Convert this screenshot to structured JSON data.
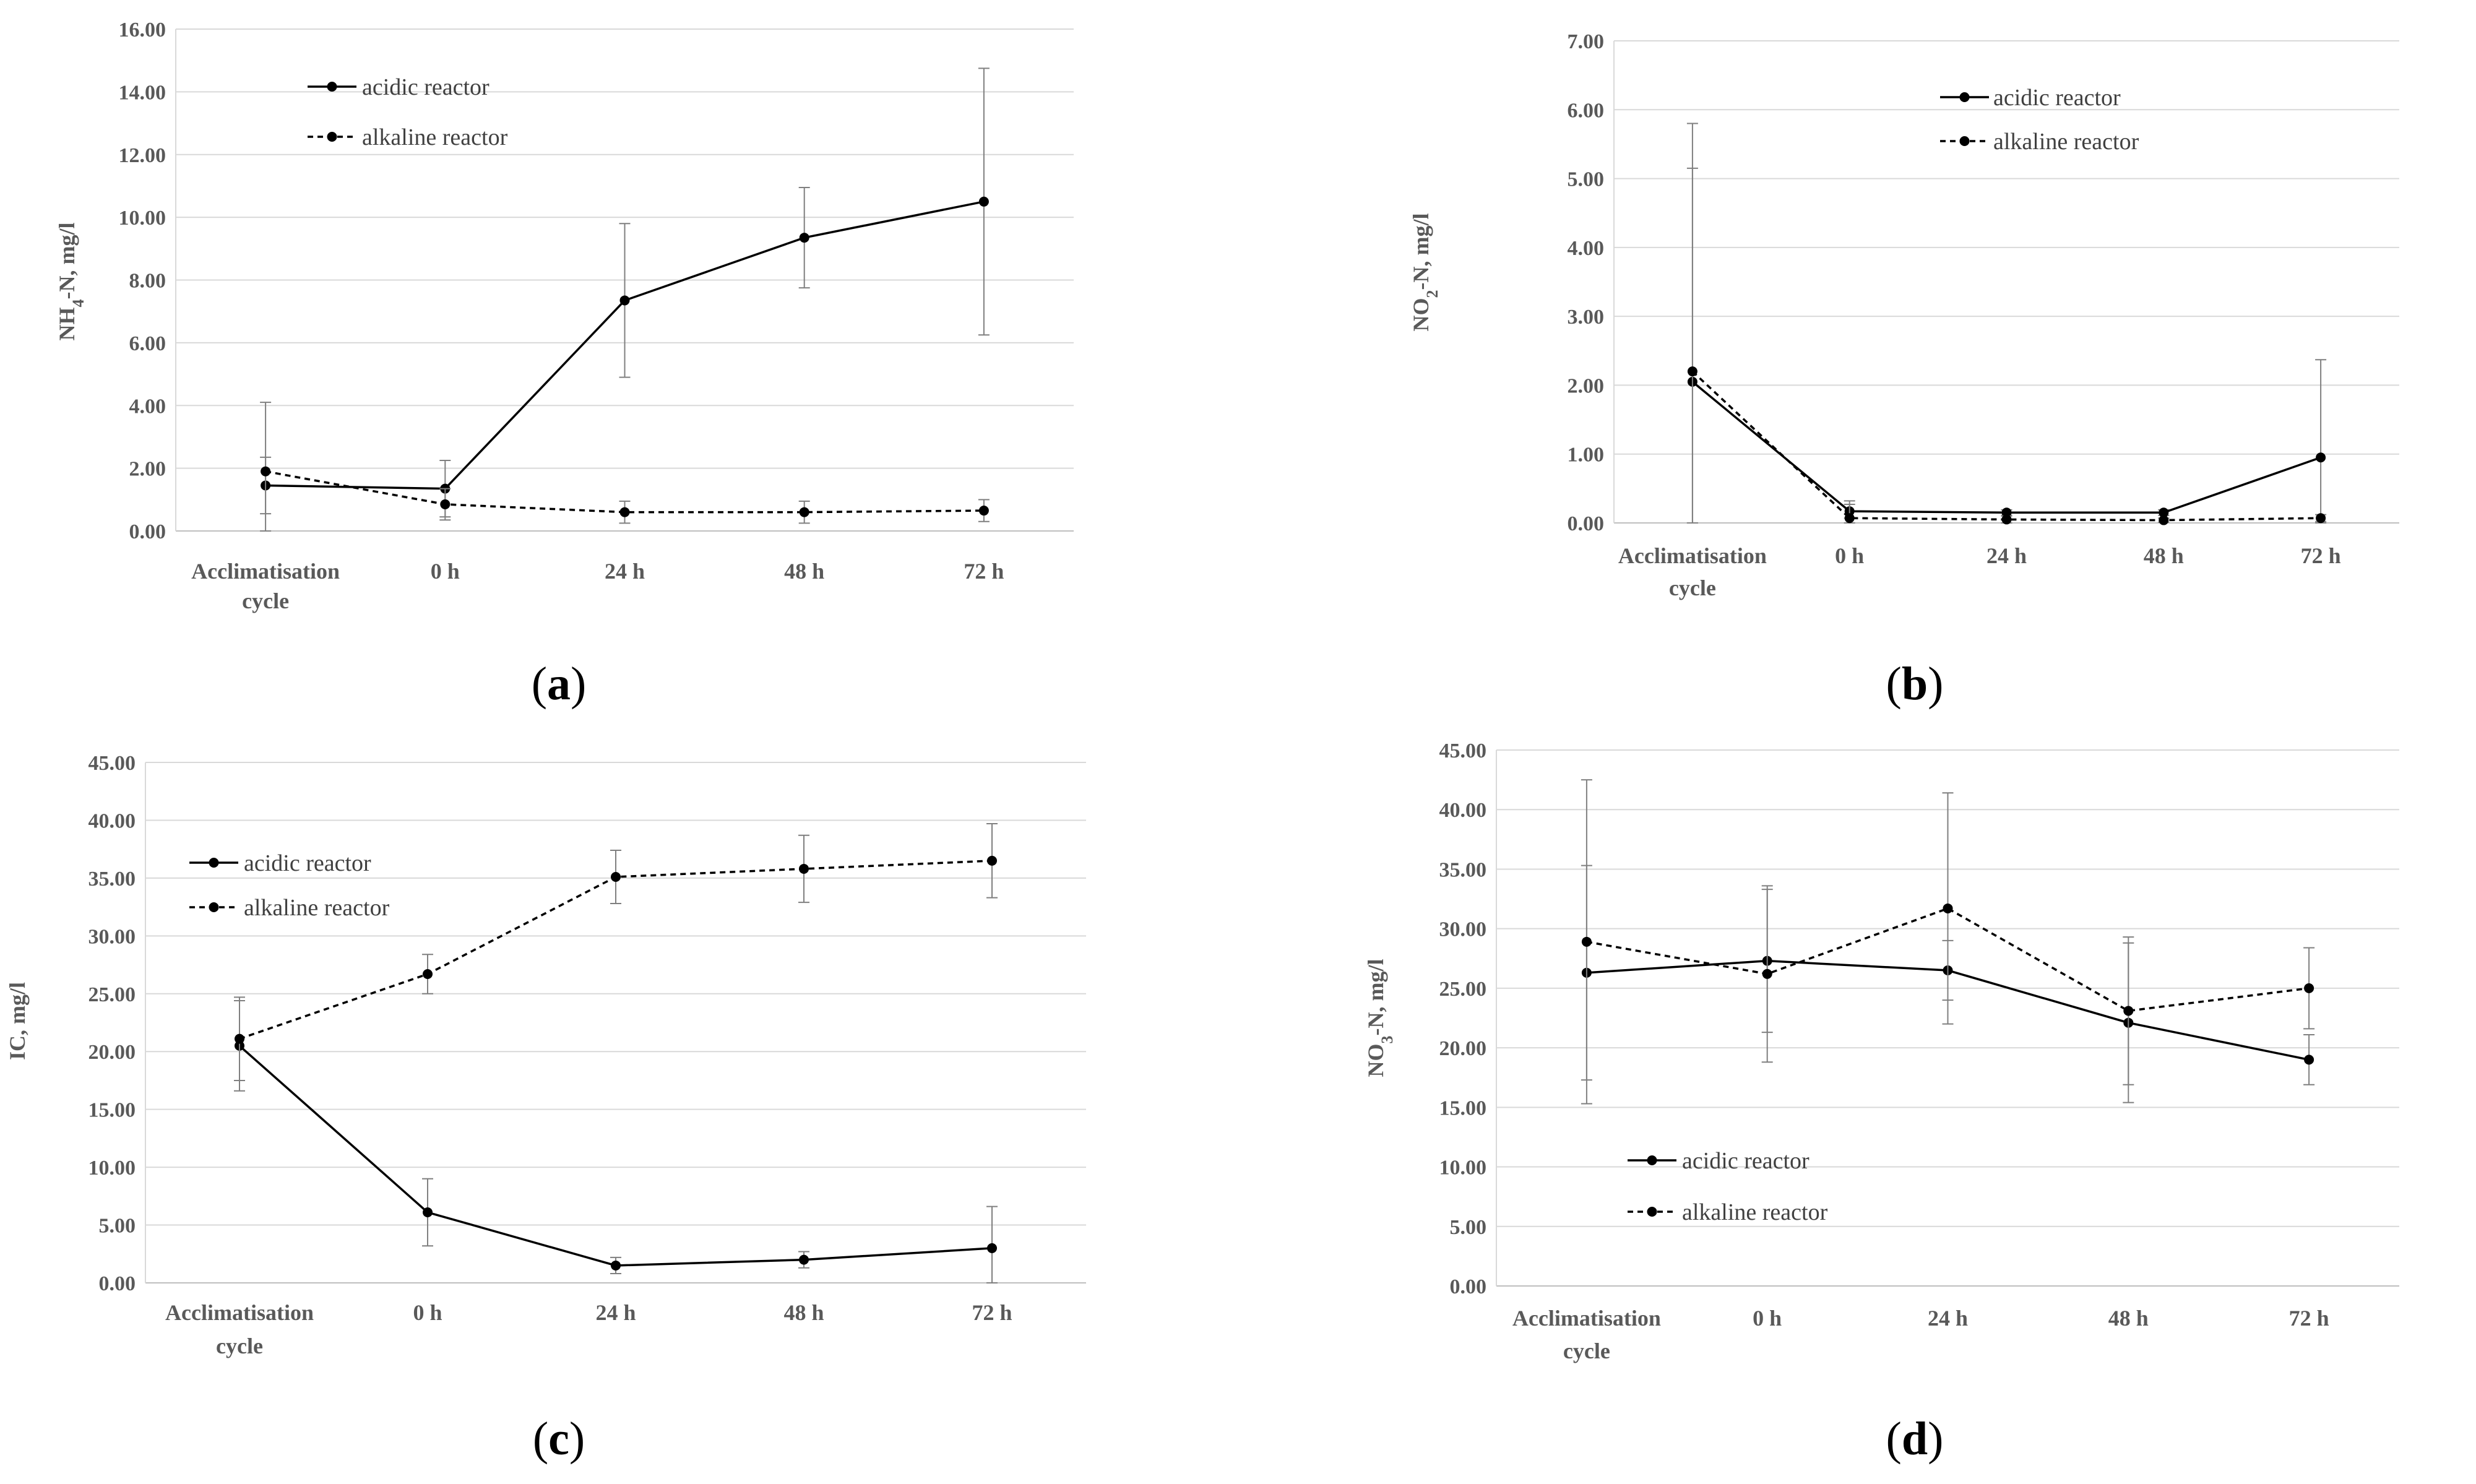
{
  "chart_data": [
    {
      "type": "line",
      "panel_label": "a",
      "ylabel_main": "NH",
      "ylabel_sub": "4",
      "ylabel_rest": "-N, mg/l",
      "ylim": [
        0,
        16
      ],
      "ytick_labels": [
        "0.00",
        "2.00",
        "4.00",
        "6.00",
        "8.00",
        "10.00",
        "12.00",
        "14.00",
        "16.00"
      ],
      "categories": [
        [
          "Acclimatisation",
          "cycle"
        ],
        [
          "0 h"
        ],
        [
          "24 h"
        ],
        [
          "48 h"
        ],
        [
          "72 h"
        ]
      ],
      "legend_position": "top-left",
      "series": [
        {
          "name": "acidic reactor",
          "style": "solid",
          "values": [
            1.45,
            1.35,
            7.35,
            9.35,
            10.5
          ],
          "errors": [
            0.9,
            0.9,
            2.45,
            1.6,
            4.25
          ]
        },
        {
          "name": "alkaline reactor",
          "style": "dashed",
          "values": [
            1.9,
            0.85,
            0.6,
            0.6,
            0.65
          ],
          "errors": [
            2.2,
            0.5,
            0.35,
            0.35,
            0.35
          ]
        }
      ]
    },
    {
      "type": "line",
      "panel_label": "b",
      "ylabel_main": "NO",
      "ylabel_sub": "2",
      "ylabel_rest": "-N, mg/l",
      "ylim": [
        0,
        7
      ],
      "ytick_labels": [
        "0.00",
        "1.00",
        "2.00",
        "3.00",
        "4.00",
        "5.00",
        "6.00",
        "7.00"
      ],
      "categories": [
        [
          "Acclimatisation",
          "cycle"
        ],
        [
          "0 h"
        ],
        [
          "24 h"
        ],
        [
          "48 h"
        ],
        [
          "72 h"
        ]
      ],
      "legend_position": "top-center",
      "series": [
        {
          "name": "acidic reactor",
          "style": "solid",
          "values": [
            2.05,
            0.17,
            0.15,
            0.15,
            0.95
          ],
          "errors": [
            3.1,
            0.1,
            0.04,
            0.04,
            1.42
          ]
        },
        {
          "name": "alkaline reactor",
          "style": "dashed",
          "values": [
            2.2,
            0.07,
            0.05,
            0.04,
            0.07
          ],
          "errors": [
            3.6,
            0.25,
            0.05,
            0.03,
            0.05
          ]
        }
      ]
    },
    {
      "type": "line",
      "panel_label": "c",
      "ylabel_main": "IC, mg/l",
      "ylabel_sub": "",
      "ylabel_rest": "",
      "ylim": [
        0,
        45
      ],
      "ytick_labels": [
        "0.00",
        "5.00",
        "10.00",
        "15.00",
        "20.00",
        "25.00",
        "30.00",
        "35.00",
        "40.00",
        "45.00"
      ],
      "categories": [
        [
          "Acclimatisation",
          "cycle"
        ],
        [
          "0 h"
        ],
        [
          "24 h"
        ],
        [
          "48 h"
        ],
        [
          "72 h"
        ]
      ],
      "legend_position": "left",
      "series": [
        {
          "name": "acidic reactor",
          "style": "solid",
          "values": [
            20.5,
            6.1,
            1.5,
            2.0,
            3.0
          ],
          "errors": [
            3.9,
            2.9,
            0.7,
            0.7,
            3.6
          ]
        },
        {
          "name": "alkaline reactor",
          "style": "dashed",
          "values": [
            21.1,
            26.7,
            35.1,
            35.8,
            36.5
          ],
          "errors": [
            3.6,
            1.7,
            2.3,
            2.9,
            3.2
          ]
        }
      ]
    },
    {
      "type": "line",
      "panel_label": "d",
      "ylabel_main": "NO",
      "ylabel_sub": "3",
      "ylabel_rest": "-N, mg/l",
      "ylim": [
        0,
        45
      ],
      "ytick_labels": [
        "0.00",
        "5.00",
        "10.00",
        "15.00",
        "20.00",
        "25.00",
        "30.00",
        "35.00",
        "40.00",
        "45.00"
      ],
      "categories": [
        [
          "Acclimatisation",
          "cycle"
        ],
        [
          "0 h"
        ],
        [
          "24 h"
        ],
        [
          "48 h"
        ],
        [
          "72 h"
        ]
      ],
      "legend_position": "bottom-left",
      "series": [
        {
          "name": "acidic reactor",
          "style": "solid",
          "values": [
            26.3,
            27.3,
            26.5,
            22.1,
            19.0
          ],
          "errors": [
            9.0,
            6.0,
            2.5,
            6.7,
            2.1
          ]
        },
        {
          "name": "alkaline reactor",
          "style": "dashed",
          "values": [
            28.9,
            26.2,
            31.7,
            23.1,
            25.0
          ],
          "errors": [
            13.6,
            7.4,
            9.7,
            6.2,
            3.4
          ]
        }
      ]
    }
  ]
}
